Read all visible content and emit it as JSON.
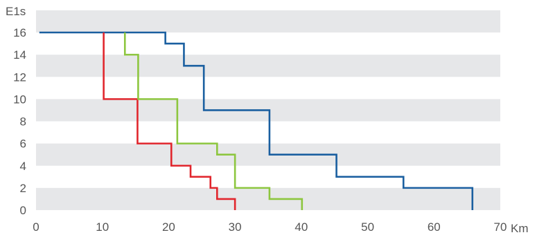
{
  "chart_data": {
    "type": "line",
    "ylabel": "E1s",
    "xlabel": "Km",
    "xlim": [
      0,
      70
    ],
    "ylim": [
      0,
      16
    ],
    "x_ticks": [
      0,
      10,
      20,
      30,
      40,
      50,
      60,
      70
    ],
    "y_ticks": [
      0,
      2,
      4,
      6,
      8,
      10,
      12,
      14,
      16
    ],
    "grid": "alternating horizontal bands",
    "band_color": "#e6e7e9",
    "series": [
      {
        "color": "#1a5fa0",
        "step_points": [
          [
            0.5,
            16
          ],
          [
            19.5,
            16
          ],
          [
            19.5,
            15
          ],
          [
            22.3,
            15
          ],
          [
            22.3,
            13
          ],
          [
            25.3,
            13
          ],
          [
            25.3,
            9
          ],
          [
            35.2,
            9
          ],
          [
            35.2,
            5
          ],
          [
            45.3,
            5
          ],
          [
            45.3,
            3
          ],
          [
            55.4,
            3
          ],
          [
            55.4,
            2
          ],
          [
            65.8,
            2
          ],
          [
            65.8,
            0
          ]
        ]
      },
      {
        "color": "#e1262d",
        "step_points": [
          [
            10.2,
            16
          ],
          [
            10.2,
            10
          ],
          [
            15.3,
            10
          ],
          [
            15.3,
            6
          ],
          [
            20.4,
            6
          ],
          [
            20.4,
            4
          ],
          [
            23.3,
            4
          ],
          [
            23.3,
            3
          ],
          [
            26.3,
            3
          ],
          [
            26.3,
            2
          ],
          [
            27.3,
            2
          ],
          [
            27.3,
            1
          ],
          [
            30.0,
            1
          ],
          [
            30.0,
            0
          ]
        ]
      },
      {
        "color": "#8dc63f",
        "step_points": [
          [
            13.4,
            16
          ],
          [
            13.4,
            14
          ],
          [
            15.4,
            14
          ],
          [
            15.4,
            10
          ],
          [
            21.3,
            10
          ],
          [
            21.3,
            6
          ],
          [
            27.3,
            6
          ],
          [
            27.3,
            5
          ],
          [
            30.0,
            5
          ],
          [
            30.0,
            2
          ],
          [
            35.2,
            2
          ],
          [
            35.2,
            1
          ],
          [
            40.1,
            1
          ],
          [
            40.1,
            0
          ]
        ]
      }
    ]
  }
}
